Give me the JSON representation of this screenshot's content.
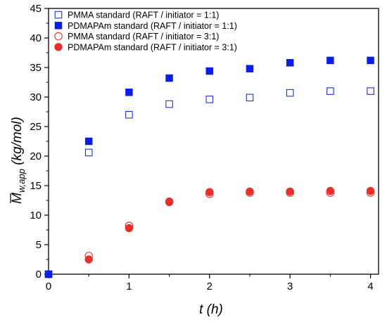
{
  "chart_data": {
    "type": "scatter",
    "xlabel": "t (h)",
    "ylabel": {
      "symbol": "M",
      "subscript": "w,app",
      "unit": " (kg/mol)"
    },
    "xlim": [
      0,
      4.1
    ],
    "ylim": [
      0,
      45
    ],
    "xticks": [
      0,
      1,
      2,
      3,
      4
    ],
    "yticks": [
      0,
      5,
      10,
      15,
      20,
      25,
      30,
      35,
      40,
      45
    ],
    "grid": false,
    "legend_position": "top-left",
    "x": [
      0,
      0.5,
      1,
      1.5,
      2,
      2.5,
      3,
      3.5,
      4
    ],
    "series": [
      {
        "name": "PMMA standard (RAFT / initiator = 1:1)",
        "marker": "square-open",
        "color": "#1f2fd6",
        "values": [
          0,
          20.6,
          27.0,
          28.8,
          29.6,
          29.9,
          30.7,
          31.0,
          31.0
        ]
      },
      {
        "name": "PDMAPAm standard (RAFT / initiator = 1:1)",
        "marker": "square-filled",
        "color": "#0a1ee6",
        "values": [
          0,
          22.5,
          30.8,
          33.2,
          34.4,
          34.8,
          35.8,
          36.2,
          36.2
        ]
      },
      {
        "name": "PMMA standard (RAFT / initiator = 3:1)",
        "marker": "circle-open",
        "color": "#e8302a",
        "values": [
          null,
          3.1,
          8.2,
          12.3,
          13.6,
          13.8,
          13.8,
          13.8,
          13.8
        ]
      },
      {
        "name": "PDMAPAm standard (RAFT / initiator = 3:1)",
        "marker": "circle-filled",
        "color": "#e8302a",
        "values": [
          null,
          2.5,
          7.8,
          12.2,
          13.9,
          14.0,
          14.0,
          14.1,
          14.1
        ]
      }
    ]
  }
}
